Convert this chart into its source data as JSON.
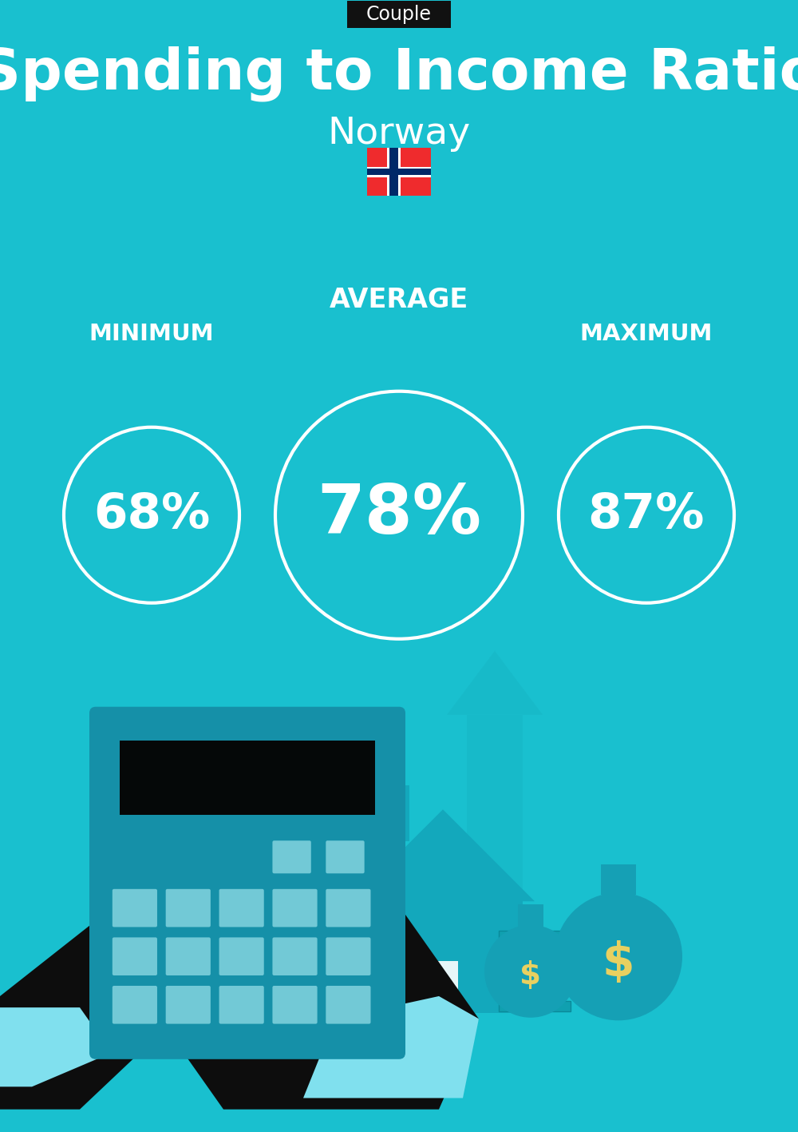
{
  "bg_color": "#19C0CF",
  "title": "Spending to Income Ratio",
  "subtitle": "Norway",
  "tag": "Couple",
  "tag_bg": "#111111",
  "tag_color": "#ffffff",
  "min_label": "MINIMUM",
  "avg_label": "AVERAGE",
  "max_label": "MAXIMUM",
  "min_value": "68%",
  "avg_value": "78%",
  "max_value": "87%",
  "text_color": "#ffffff",
  "title_fontsize": 52,
  "subtitle_fontsize": 34,
  "tag_fontsize": 17,
  "avg_label_fontsize": 24,
  "min_max_label_fontsize": 21,
  "min_val_fontsize": 44,
  "avg_val_fontsize": 62,
  "max_val_fontsize": 44,
  "fig_w": 10.0,
  "fig_h": 14.17,
  "dpi": 100,
  "circle_lw": 3.0,
  "darker_teal": "#15AABA",
  "dark_teal": "#0D8FA0",
  "darkest_teal": "#0A7080",
  "arrow_color": "#13A8B8",
  "hand_dark": "#0D0D0D",
  "calc_body": "#1590A8",
  "calc_screen": "#050808",
  "calc_btn": "#7DD0DC",
  "suit_cuff": "#80E0EE",
  "house_color": "#13A8BC",
  "money_bag_color": "#15A0B5",
  "money_symbol_color": "#E8D060",
  "bill_color": "#10A0B0"
}
